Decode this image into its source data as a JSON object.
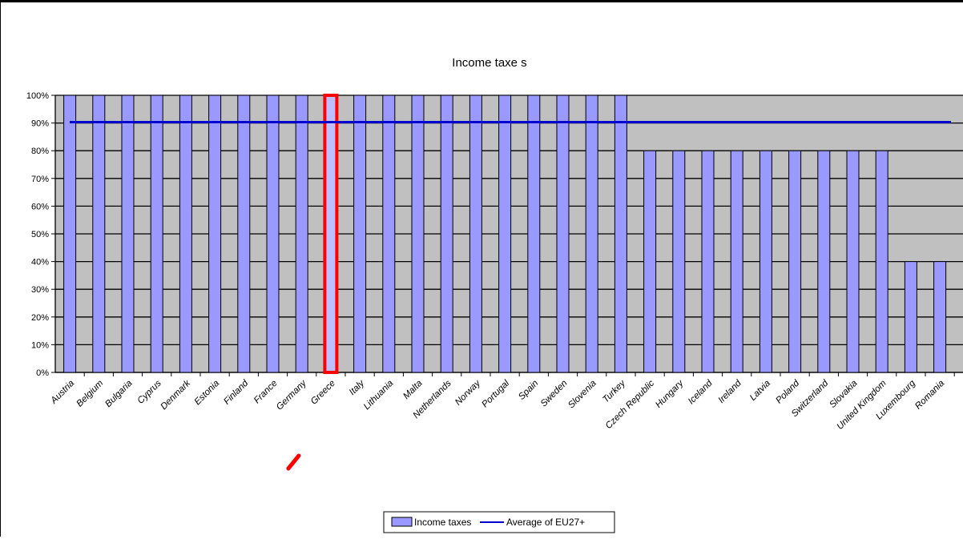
{
  "chart_data": {
    "type": "bar",
    "title": "Income taxe s",
    "xlabel": "",
    "ylabel": "",
    "ylim": [
      0,
      100
    ],
    "y_tick_labels": [
      "0%",
      "10%",
      "20%",
      "30%",
      "40%",
      "50%",
      "60%",
      "70%",
      "80%",
      "90%",
      "100%"
    ],
    "categories": [
      "Austria",
      "Belgium",
      "Bulgaria",
      "Cyprus",
      "Denmark",
      "Estonia",
      "Finland",
      "France",
      "Germany",
      "Greece",
      "Italy",
      "Lithuania",
      "Malta",
      "Netherlands",
      "Norway",
      "Portugal",
      "Spain",
      "Sweden",
      "Slovenia",
      "Turkey",
      "Czech Republic",
      "Hungary",
      "Iceland",
      "Ireland",
      "Latvia",
      "Poland",
      "Switzerland",
      "Slovakia",
      "United Kingdom",
      "Luxembourg",
      "Romania"
    ],
    "series": [
      {
        "name": "Income taxes",
        "type": "bar",
        "color": "#9999ff",
        "values": [
          100,
          100,
          100,
          100,
          100,
          100,
          100,
          100,
          100,
          100,
          100,
          100,
          100,
          100,
          100,
          100,
          100,
          100,
          100,
          100,
          80,
          80,
          80,
          80,
          80,
          80,
          80,
          80,
          80,
          40,
          40
        ]
      },
      {
        "name": "Average of EU27+",
        "type": "line",
        "color": "#0000cc",
        "value": 90.3
      }
    ],
    "highlighted_category": "Greece",
    "highlight_color": "#ff0000",
    "plot_background": "#c0c0c0",
    "grid": true,
    "legend_position": "bottom"
  }
}
